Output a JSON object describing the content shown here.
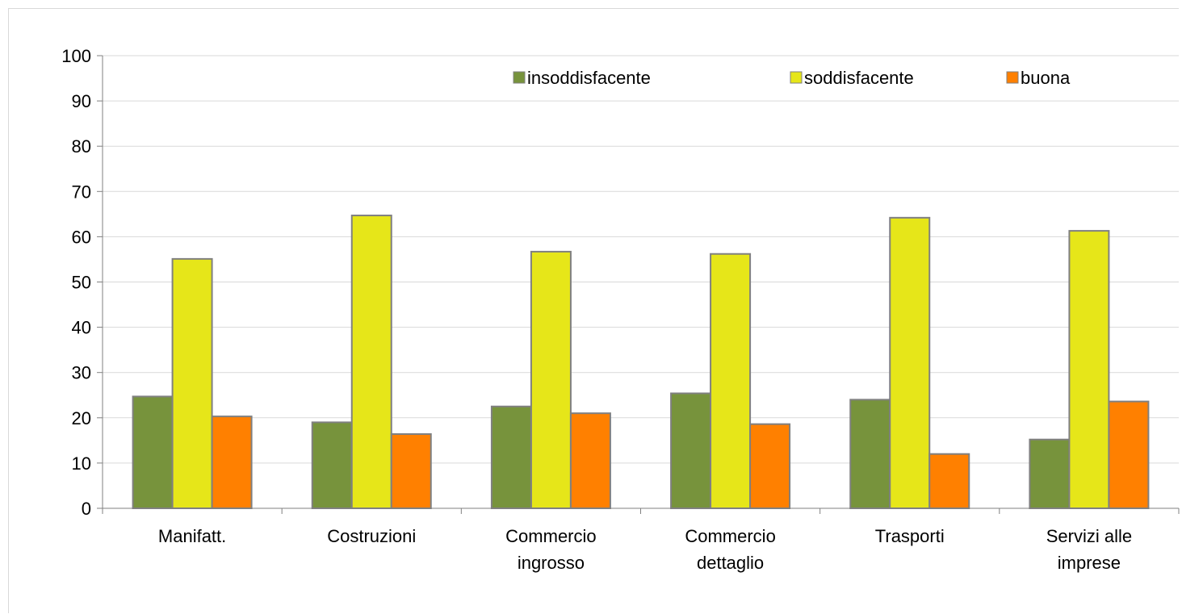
{
  "chart_data": {
    "type": "bar",
    "categories": [
      [
        "Manifatt."
      ],
      [
        "Costruzioni"
      ],
      [
        "Commercio",
        "ingrosso"
      ],
      [
        "Commercio",
        "dettaglio"
      ],
      [
        "Trasporti"
      ],
      [
        "Servizi alle",
        "imprese"
      ]
    ],
    "series": [
      {
        "name": "insoddisfacente",
        "color": "#77933c",
        "values": [
          24.7,
          19.0,
          22.5,
          25.4,
          24.0,
          15.2
        ]
      },
      {
        "name": "soddisfacente",
        "color": "#e6e619",
        "values": [
          55.1,
          64.7,
          56.7,
          56.2,
          64.2,
          61.3
        ]
      },
      {
        "name": "buona",
        "color": "#ff8000",
        "values": [
          20.3,
          16.4,
          21.0,
          18.6,
          12.0,
          23.6
        ]
      }
    ],
    "ylim": [
      0,
      100
    ],
    "yticks": [
      "0",
      "10",
      "20",
      "30",
      "40",
      "50",
      "60",
      "70",
      "80",
      "90",
      "100"
    ],
    "grid": true,
    "legend_position": "top-right",
    "bar_outline_color": "#808080",
    "gridline_color": "#d9d9d9",
    "axis_color": "#808080"
  }
}
